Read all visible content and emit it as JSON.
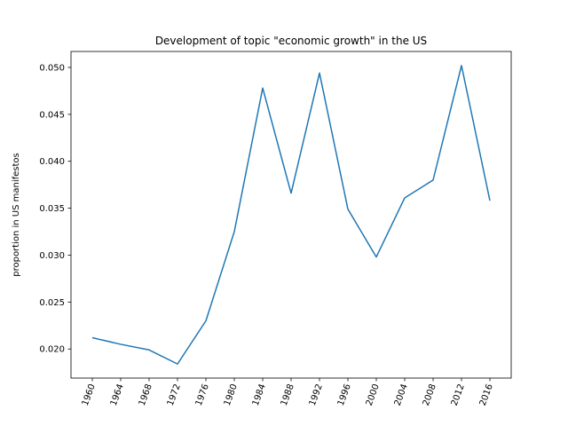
{
  "chart_data": {
    "type": "line",
    "title": "Development of topic \"economic growth\" in the US",
    "xlabel": "",
    "ylabel": "proportion in US manifestos",
    "x": [
      "1960",
      "1964",
      "1968",
      "1972",
      "1976",
      "1980",
      "1984",
      "1988",
      "1992",
      "1996",
      "2000",
      "2004",
      "2008",
      "2012",
      "2016"
    ],
    "series": [
      {
        "values": [
          0.0212,
          0.0205,
          0.0199,
          0.0184,
          0.023,
          0.0325,
          0.0478,
          0.0366,
          0.0494,
          0.0349,
          0.0298,
          0.0361,
          0.038,
          0.0502,
          0.0358
        ],
        "color": "#1f77b4"
      }
    ],
    "ylim": [
      0.0169,
      0.0517
    ],
    "yticks": [
      "0.020",
      "0.025",
      "0.030",
      "0.035",
      "0.040",
      "0.045",
      "0.050"
    ],
    "grid": false,
    "legend": "none"
  }
}
